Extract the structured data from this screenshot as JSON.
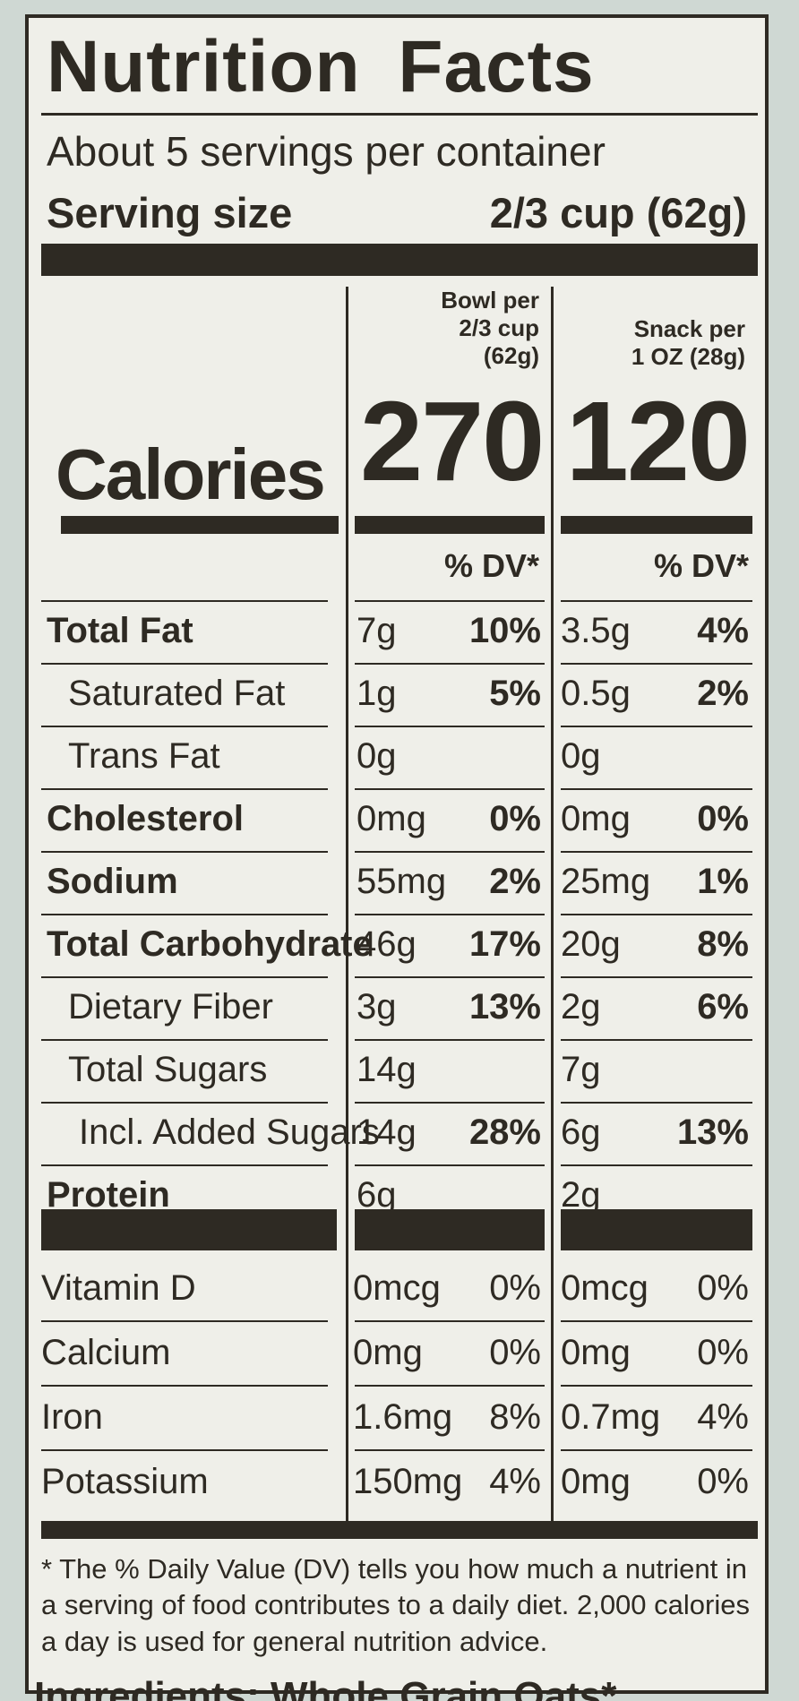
{
  "label": {
    "title": "Nutrition Facts",
    "servings": "About 5 servings per container",
    "serving_size_label": "Serving size",
    "serving_size_value": "2/3 cup (62g)",
    "calories_label": "Calories",
    "columns": [
      {
        "head1": "Bowl per",
        "head2": "2/3 cup",
        "head3": "(62g)",
        "calories": "270",
        "dv_header": "% DV*"
      },
      {
        "head1": "",
        "head2": "Snack per",
        "head3": "1 OZ (28g)",
        "calories": "120",
        "dv_header": "% DV*"
      }
    ],
    "nutrients": [
      {
        "name": "Total Fat",
        "bold": true,
        "indent": 0,
        "c1": "7g",
        "p1": "10%",
        "c2": "3.5g",
        "p2": "4%"
      },
      {
        "name": "Saturated Fat",
        "bold": false,
        "indent": 1,
        "c1": "1g",
        "p1": "5%",
        "c2": "0.5g",
        "p2": "2%"
      },
      {
        "name": "Trans Fat",
        "bold": false,
        "indent": 1,
        "c1": "0g",
        "p1": "",
        "c2": "0g",
        "p2": ""
      },
      {
        "name": "Cholesterol",
        "bold": true,
        "indent": 0,
        "c1": "0mg",
        "p1": "0%",
        "c2": "0mg",
        "p2": "0%"
      },
      {
        "name": "Sodium",
        "bold": true,
        "indent": 0,
        "c1": "55mg",
        "p1": "2%",
        "c2": "25mg",
        "p2": "1%"
      },
      {
        "name": "Total Carbohydrate",
        "bold": true,
        "indent": 0,
        "c1": "46g",
        "p1": "17%",
        "c2": "20g",
        "p2": "8%"
      },
      {
        "name": "Dietary Fiber",
        "bold": false,
        "indent": 1,
        "c1": "3g",
        "p1": "13%",
        "c2": "2g",
        "p2": "6%"
      },
      {
        "name": "Total Sugars",
        "bold": false,
        "indent": 1,
        "c1": "14g",
        "p1": "",
        "c2": "7g",
        "p2": ""
      },
      {
        "name": "Incl. Added Sugars",
        "bold": false,
        "indent": 2,
        "c1": "14g",
        "p1": "28%",
        "c2": "6g",
        "p2": "13%"
      },
      {
        "name": "Protein",
        "bold": true,
        "indent": 0,
        "c1": "6g",
        "p1": "",
        "c2": "2g",
        "p2": ""
      }
    ],
    "vitamins": [
      {
        "name": "Vitamin D",
        "c1": "0mcg",
        "p1": "0%",
        "c2": "0mcg",
        "p2": "0%"
      },
      {
        "name": "Calcium",
        "c1": "0mg",
        "p1": "0%",
        "c2": "0mg",
        "p2": "0%"
      },
      {
        "name": "Iron",
        "c1": "1.6mg",
        "p1": "8%",
        "c2": "0.7mg",
        "p2": "4%"
      },
      {
        "name": "Potassium",
        "c1": "150mg",
        "p1": "4%",
        "c2": "0mg",
        "p2": "0%"
      }
    ],
    "footnote": "* The % Daily Value (DV) tells you how much a nutrient in a serving of food contributes to a daily diet. 2,000 calories a day is used for general nutrition advice.",
    "ingredients_peek": "Ingredients: Whole Grain Oats*"
  }
}
